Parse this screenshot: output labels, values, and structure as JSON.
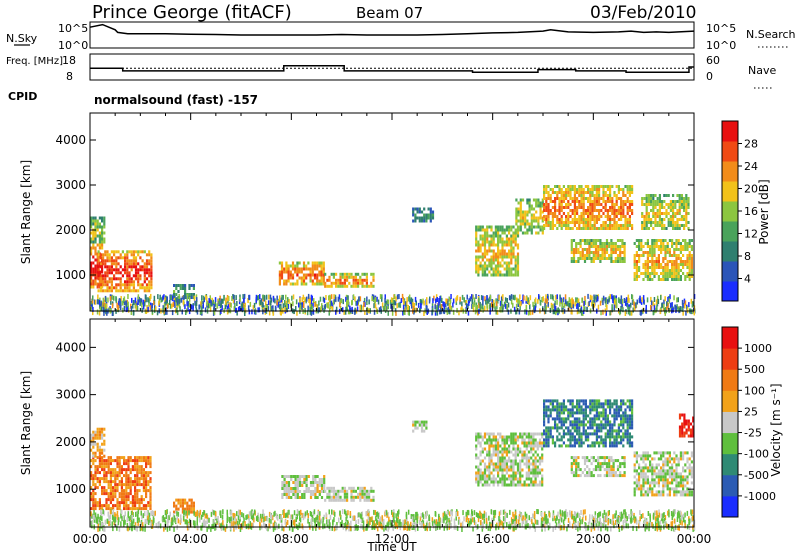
{
  "header": {
    "station": "Prince George (fitACF)",
    "beam": "Beam 07",
    "date": "03/Feb/2010"
  },
  "colors": {
    "power_scale": [
      "#1a2dff",
      "#2b55b8",
      "#2f7f6f",
      "#4aa35b",
      "#8cc640",
      "#f2c21a",
      "#f28c1a",
      "#f04a14",
      "#e81010"
    ],
    "velocity_scale": [
      "#1a2dff",
      "#2b5bb3",
      "#2f8a74",
      "#5fbf3d",
      "#c8c8c8",
      "#f2a21a",
      "#f07a14",
      "#ee3d12",
      "#e81010"
    ],
    "ground_scatter": "#c0c0c0"
  },
  "chart_data": [
    {
      "type": "line",
      "name": "noise-panel",
      "left_label": "N.Sky",
      "left_ticks": [
        "10^5",
        "10^0"
      ],
      "right_label": "N.Search",
      "right_ticks": [
        "10^5",
        "10^0"
      ],
      "x": [
        0,
        0.5,
        1.0,
        1.1,
        1.5,
        2,
        3,
        4,
        5,
        6,
        7,
        8,
        9,
        10,
        11,
        12,
        13,
        14,
        15,
        16,
        17,
        18,
        18.3,
        19,
        20,
        21,
        21.5,
        22,
        22.5,
        23,
        24
      ],
      "sky": [
        0.8,
        0.9,
        0.7,
        0.6,
        0.55,
        0.55,
        0.55,
        0.53,
        0.52,
        0.5,
        0.5,
        0.5,
        0.5,
        0.52,
        0.5,
        0.5,
        0.5,
        0.52,
        0.55,
        0.58,
        0.6,
        0.65,
        0.7,
        0.62,
        0.6,
        0.62,
        0.65,
        0.6,
        0.62,
        0.6,
        0.65
      ]
    },
    {
      "type": "line",
      "name": "frequency-panel",
      "left_label": "Freq. [MHz]",
      "left_ticks": [
        "18",
        "8"
      ],
      "right_label": "Nave",
      "right_ticks": [
        "60",
        "0"
      ],
      "freq_steps": [
        [
          0,
          1.3,
          12.5
        ],
        [
          1.3,
          7.7,
          11.5
        ],
        [
          7.7,
          10.1,
          13.5
        ],
        [
          10.1,
          15.2,
          11.5
        ],
        [
          15.2,
          17.8,
          11
        ],
        [
          17.8,
          19.3,
          12
        ],
        [
          19.3,
          21.3,
          11.5
        ],
        [
          21.3,
          23.8,
          11
        ],
        [
          23.8,
          24,
          13
        ]
      ],
      "nave_level": 0.45
    },
    {
      "type": "table",
      "name": "cpid",
      "label": "CPID",
      "text": "normalsound (fast) -157"
    },
    {
      "type": "heatmap",
      "name": "power-panel",
      "ylabel": "Slant Range [km]",
      "y_ticks": [
        1000,
        2000,
        3000,
        4000
      ],
      "ylim": [
        200,
        4600
      ],
      "xlim": [
        0,
        24
      ],
      "colorbar_label": "Power [dB]",
      "colorbar_ticks": [
        "4",
        "8",
        "12",
        "16",
        "20",
        "24",
        "28"
      ],
      "regions": [
        {
          "t0": 0.0,
          "t1": 0.5,
          "r0": 700,
          "r1": 1700,
          "level": 0.9
        },
        {
          "t0": 0.3,
          "t1": 2.4,
          "r0": 650,
          "r1": 1550,
          "level": 0.85
        },
        {
          "t0": 0.0,
          "t1": 0.6,
          "r0": 1700,
          "r1": 2300,
          "level": 0.5
        },
        {
          "t0": 3.3,
          "t1": 4.1,
          "r0": 500,
          "r1": 800,
          "level": 0.35
        },
        {
          "t0": 7.5,
          "t1": 9.3,
          "r0": 800,
          "r1": 1300,
          "level": 0.75
        },
        {
          "t0": 9.3,
          "t1": 11.3,
          "r0": 750,
          "r1": 1050,
          "level": 0.7
        },
        {
          "t0": 12.8,
          "t1": 13.6,
          "r0": 2200,
          "r1": 2500,
          "level": 0.3
        },
        {
          "t0": 15.3,
          "t1": 17.0,
          "r0": 1000,
          "r1": 2100,
          "level": 0.6
        },
        {
          "t0": 16.9,
          "t1": 18.0,
          "r0": 1900,
          "r1": 2700,
          "level": 0.55
        },
        {
          "t0": 18.0,
          "t1": 21.5,
          "r0": 2000,
          "r1": 3000,
          "level": 0.72
        },
        {
          "t0": 19.1,
          "t1": 21.2,
          "r0": 1300,
          "r1": 1800,
          "level": 0.6
        },
        {
          "t0": 21.6,
          "t1": 23.9,
          "r0": 900,
          "r1": 1800,
          "level": 0.62
        },
        {
          "t0": 21.9,
          "t1": 23.8,
          "r0": 2000,
          "r1": 2800,
          "level": 0.55
        }
      ]
    },
    {
      "type": "heatmap",
      "name": "velocity-panel",
      "ylabel": "Slant Range [km]",
      "y_ticks": [
        1000,
        2000,
        3000,
        4000
      ],
      "ylim": [
        200,
        4600
      ],
      "xlim": [
        0,
        24
      ],
      "xlabel": "Time UT",
      "x_ticks": [
        "00:00",
        "04:00",
        "08:00",
        "12:00",
        "16:00",
        "20:00",
        "00:00"
      ],
      "colorbar_label": "Velocity [m s⁻¹]",
      "colorbar_ticks": [
        "1000",
        "500",
        "100",
        "25",
        "-25",
        "-100",
        "-500",
        "-1000"
      ],
      "regions": [
        {
          "t0": 0.0,
          "t1": 2.4,
          "r0": 600,
          "r1": 1700,
          "level": 0.72
        },
        {
          "t0": 0.0,
          "t1": 0.6,
          "r0": 1700,
          "r1": 2300,
          "level": 0.6
        },
        {
          "t0": 3.3,
          "t1": 4.1,
          "r0": 500,
          "r1": 800,
          "level": 0.65
        },
        {
          "t0": 7.6,
          "t1": 9.3,
          "r0": 850,
          "r1": 1300,
          "level": 0.47
        },
        {
          "t0": 9.3,
          "t1": 11.3,
          "r0": 750,
          "r1": 1050,
          "level": 0.47
        },
        {
          "t0": 12.8,
          "t1": 13.4,
          "r0": 2200,
          "r1": 2450,
          "level": 0.47
        },
        {
          "t0": 15.3,
          "t1": 18.0,
          "r0": 1100,
          "r1": 2200,
          "level": 0.47
        },
        {
          "t0": 18.0,
          "t1": 21.5,
          "r0": 1900,
          "r1": 2900,
          "level": 0.25
        },
        {
          "t0": 19.1,
          "t1": 21.2,
          "r0": 1300,
          "r1": 1700,
          "level": 0.47
        },
        {
          "t0": 21.6,
          "t1": 23.9,
          "r0": 900,
          "r1": 1800,
          "level": 0.47
        },
        {
          "t0": 23.4,
          "t1": 24.0,
          "r0": 2100,
          "r1": 2600,
          "level": 0.9
        }
      ]
    }
  ]
}
